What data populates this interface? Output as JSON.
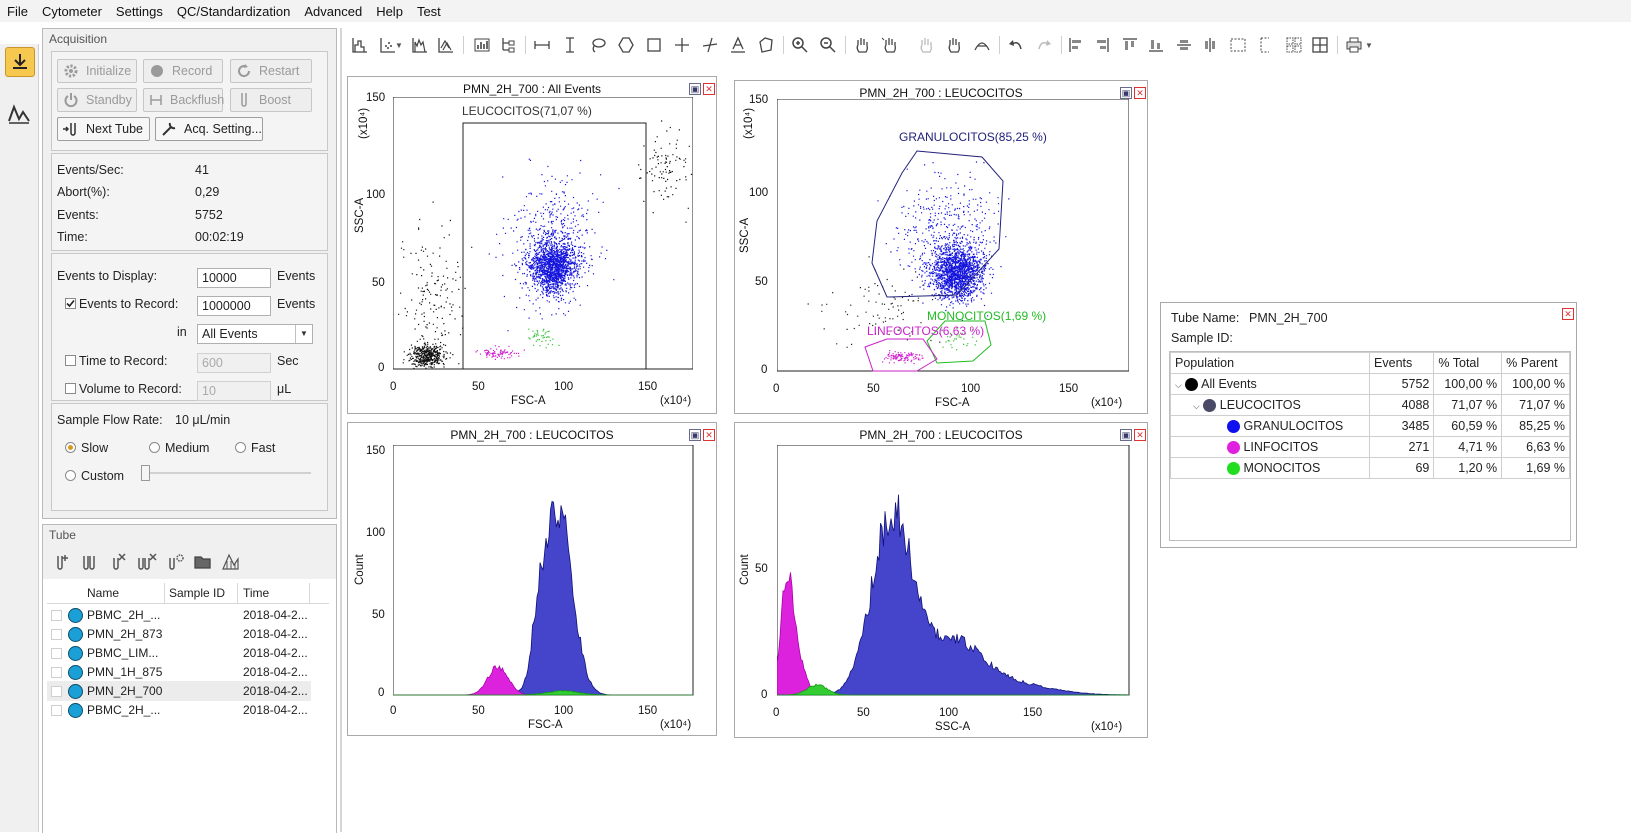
{
  "menu": [
    "File",
    "Cytometer",
    "Settings",
    "QC/Standardization",
    "Advanced",
    "Help",
    "Test"
  ],
  "acquisition": {
    "title": "Acquisition",
    "buttons": {
      "initialize": "Initialize",
      "record": "Record",
      "restart": "Restart",
      "standby": "Standby",
      "backflush": "Backflush",
      "boost": "Boost",
      "next_tube": "Next Tube",
      "acq_settings": "Acq. Setting..."
    },
    "stats": {
      "events_sec_label": "Events/Sec:",
      "events_sec": "41",
      "abort_label": "Abort(%):",
      "abort": "0,29",
      "events_label": "Events:",
      "events": "5752",
      "time_label": "Time:",
      "time": "00:02:19"
    },
    "display": {
      "events_to_display_label": "Events to Display:",
      "events_to_display": "10000",
      "events_unit": "Events",
      "events_to_record_label": "Events to Record:",
      "events_to_record": "1000000",
      "events_to_record_checked": true,
      "in_label": "in",
      "in_value": "All Events",
      "time_to_record_label": "Time to Record:",
      "time_to_record": "600",
      "time_unit": "Sec",
      "volume_to_record_label": "Volume to Record:",
      "volume_to_record": "10",
      "volume_unit": "μL"
    },
    "flow": {
      "label": "Sample Flow Rate:",
      "value": "10 μL/min",
      "options": [
        "Slow",
        "Medium",
        "Fast",
        "Custom"
      ],
      "selected": "Slow"
    }
  },
  "tube": {
    "title": "Tube",
    "columns": [
      "Name",
      "Sample ID",
      "Time"
    ],
    "rows": [
      {
        "name": "PBMC_2H_...",
        "sample_id": "",
        "time": "2018-04-2..."
      },
      {
        "name": "PMN_2H_873",
        "sample_id": "",
        "time": "2018-04-2..."
      },
      {
        "name": "PBMC_LIM...",
        "sample_id": "",
        "time": "2018-04-2..."
      },
      {
        "name": "PMN_1H_875",
        "sample_id": "",
        "time": "2018-04-2..."
      },
      {
        "name": "PMN_2H_700",
        "sample_id": "",
        "time": "2018-04-2...",
        "selected": true
      },
      {
        "name": "PBMC_2H_...",
        "sample_id": "",
        "time": "2018-04-2..."
      }
    ]
  },
  "plots": {
    "p1": {
      "title": "PMN_2H_700 : All Events",
      "xlabel": "FSC-A",
      "ylabel": "SSC-A",
      "gate": "LEUCOCITOS(71,07 %)"
    },
    "p2": {
      "title": "PMN_2H_700 : LEUCOCITOS",
      "xlabel": "FSC-A",
      "ylabel": "SSC-A",
      "gate_gran": "GRANULOCITOS(85,25 %)",
      "gate_mono": "MONOCITOS(1,69 %)",
      "gate_linf": "LINFOCITOS(6,63 %)"
    },
    "p3": {
      "title": "PMN_2H_700 : LEUCOCITOS",
      "xlabel": "FSC-A",
      "ylabel": "Count"
    },
    "p4": {
      "title": "PMN_2H_700 : LEUCOCITOS",
      "xlabel": "SSC-A",
      "ylabel": "Count"
    },
    "exp": "(x10⁴)",
    "ylab_exp": "(x10⁴)"
  },
  "stats_panel": {
    "tube_name_label": "Tube Name:",
    "tube_name": "PMN_2H_700",
    "sample_id_label": "Sample ID:",
    "columns": [
      "Population",
      "Events",
      "% Total",
      "% Parent"
    ],
    "rows": [
      {
        "name": "All Events",
        "events": "5752",
        "total": "100,00 %",
        "parent": "100,00 %",
        "color": "#000000",
        "indent": 0
      },
      {
        "name": "LEUCOCITOS",
        "events": "4088",
        "total": "71,07 %",
        "parent": "71,07 %",
        "color": "#4a4a66",
        "indent": 1
      },
      {
        "name": "GRANULOCITOS",
        "events": "3485",
        "total": "60,59 %",
        "parent": "85,25 %",
        "color": "#1010ee",
        "indent": 2
      },
      {
        "name": "LINFOCITOS",
        "events": "271",
        "total": "4,71 %",
        "parent": "6,63 %",
        "color": "#e020e0",
        "indent": 2
      },
      {
        "name": "MONOCITOS",
        "events": "69",
        "total": "1,20 %",
        "parent": "1,69 %",
        "color": "#20dd20",
        "indent": 2
      }
    ]
  }
}
